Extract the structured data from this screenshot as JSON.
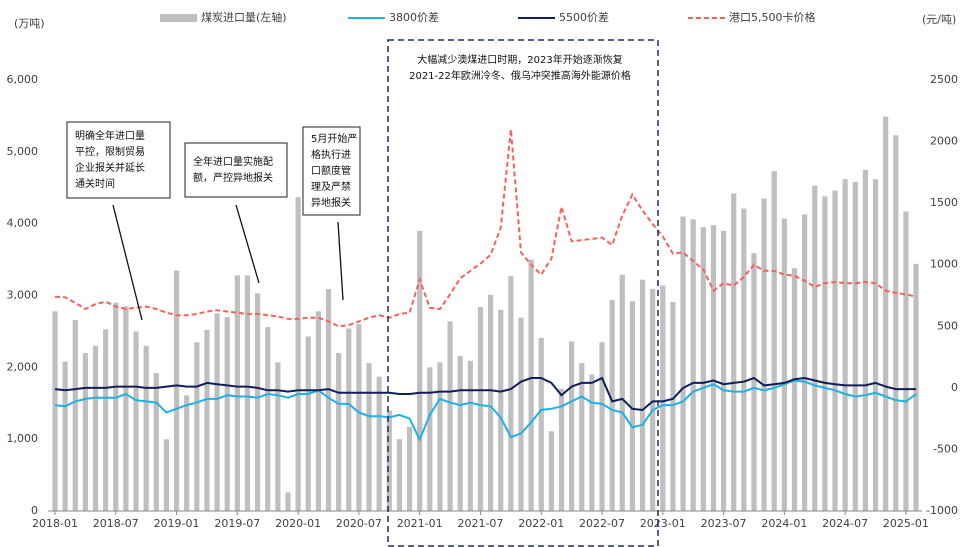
{
  "chart_data": {
    "type": "bar",
    "y_unit": "(万吨)",
    "y2_unit": "(元/吨)",
    "categories": [
      "2018-01",
      null,
      null,
      null,
      null,
      null,
      "2018-07",
      null,
      null,
      null,
      null,
      null,
      "2019-01",
      null,
      null,
      null,
      null,
      null,
      "2019-07",
      null,
      null,
      null,
      null,
      null,
      "2020-01",
      null,
      null,
      null,
      null,
      null,
      "2020-07",
      null,
      null,
      null,
      null,
      null,
      "2021-01",
      null,
      null,
      null,
      null,
      null,
      "2021-07",
      null,
      null,
      null,
      null,
      null,
      "2022-01",
      null,
      null,
      null,
      null,
      null,
      "2022-07",
      null,
      null,
      null,
      null,
      null,
      "2023-01",
      null,
      null,
      null,
      null,
      null,
      "2023-07",
      null,
      null,
      null,
      null,
      null,
      "2024-01",
      null,
      null,
      null,
      null,
      null,
      "2024-07",
      null,
      null,
      null,
      null,
      null,
      "2025-01",
      null
    ],
    "series": [
      {
        "name": "煤炭进口量(左轴)",
        "type": "bar",
        "color": "#bfbfbf",
        "values": [
          2780,
          2080,
          2660,
          2200,
          2300,
          2530,
          2900,
          2850,
          2500,
          2300,
          1920,
          1000,
          3350,
          1610,
          2350,
          2520,
          2750,
          2700,
          3280,
          3280,
          3030,
          2560,
          2070,
          260,
          4370,
          2430,
          2780,
          3090,
          2200,
          2540,
          2600,
          2060,
          1870,
          1400,
          1000,
          1170,
          3900,
          2000,
          2070,
          2640,
          2160,
          2090,
          2840,
          3010,
          2800,
          3270,
          2690,
          3500,
          2410,
          1110,
          1700,
          2360,
          2060,
          1900,
          2350,
          2940,
          3290,
          2920,
          3220,
          3090,
          3140,
          2910,
          4100,
          4060,
          3950,
          3980,
          3900,
          4420,
          4210,
          3590,
          4350,
          4730,
          4070,
          3380,
          4130,
          4530,
          4380,
          4460,
          4620,
          4580,
          4750,
          4620,
          5490,
          5230,
          4170,
          3440
        ]
      },
      {
        "name": "3800价差",
        "type": "line",
        "axis": "y2",
        "color": "#1fb0e6",
        "values": [
          -140,
          -150,
          -110,
          -90,
          -80,
          -80,
          -80,
          -50,
          -100,
          -110,
          -120,
          -200,
          -170,
          -140,
          -120,
          -90,
          -90,
          -60,
          -70,
          -70,
          -80,
          -50,
          -60,
          -80,
          -50,
          -50,
          -20,
          -80,
          -130,
          -130,
          -200,
          -230,
          -230,
          -240,
          -220,
          -250,
          -420,
          -220,
          -90,
          -120,
          -140,
          -120,
          -140,
          -150,
          -240,
          -400,
          -370,
          -280,
          -180,
          -170,
          -150,
          -110,
          -70,
          -120,
          -130,
          -180,
          -200,
          -320,
          -300,
          -180,
          -140,
          -140,
          -110,
          -30,
          0,
          30,
          -20,
          -30,
          -30,
          0,
          -20,
          0,
          30,
          60,
          50,
          20,
          0,
          -20,
          -50,
          -70,
          -60,
          -40,
          -70,
          -100,
          -110,
          -50
        ]
      },
      {
        "name": "5500价差",
        "type": "line",
        "axis": "y2",
        "color": "#0f1f5c",
        "values": [
          -10,
          -20,
          -10,
          0,
          0,
          0,
          10,
          10,
          10,
          0,
          0,
          10,
          20,
          10,
          10,
          40,
          30,
          20,
          10,
          10,
          0,
          -20,
          -20,
          -30,
          -20,
          -20,
          -20,
          -10,
          -40,
          -40,
          -40,
          -40,
          -40,
          -40,
          -50,
          -50,
          -40,
          -40,
          -30,
          -30,
          -20,
          -20,
          -20,
          -20,
          -30,
          -10,
          50,
          80,
          80,
          40,
          -60,
          10,
          40,
          40,
          80,
          -110,
          -90,
          -170,
          -180,
          -110,
          -110,
          -90,
          0,
          40,
          40,
          60,
          30,
          40,
          50,
          80,
          20,
          30,
          40,
          70,
          80,
          60,
          40,
          30,
          20,
          20,
          20,
          40,
          10,
          -10,
          -10,
          -10
        ]
      },
      {
        "name": "港口5,500卡价格",
        "type": "line",
        "axis": "y2",
        "style": "dashed",
        "color": "#f4625f",
        "values": [
          740,
          735,
          690,
          640,
          680,
          700,
          660,
          640,
          650,
          660,
          640,
          610,
          590,
          590,
          600,
          620,
          630,
          620,
          610,
          600,
          600,
          590,
          580,
          560,
          560,
          570,
          570,
          540,
          500,
          510,
          540,
          570,
          590,
          570,
          600,
          610,
          880,
          650,
          640,
          760,
          890,
          950,
          1010,
          1080,
          1300,
          2100,
          1100,
          1000,
          920,
          1050,
          1470,
          1190,
          1200,
          1210,
          1220,
          1160,
          1400,
          1570,
          1440,
          1330,
          1230,
          1090,
          1100,
          1030,
          960,
          790,
          850,
          830,
          900,
          1000,
          950,
          950,
          920,
          910,
          870,
          820,
          850,
          860,
          850,
          850,
          860,
          850,
          790,
          770,
          760,
          740
        ]
      }
    ],
    "ylim": [
      0,
      6000
    ],
    "yticks": [
      0,
      {
        "value": 1000,
        "label": "1,000"
      },
      {
        "value": 2000,
        "label": "2,000"
      },
      {
        "value": 3000,
        "label": "3,000"
      },
      {
        "value": 4000,
        "label": "4,000"
      },
      {
        "value": 5000,
        "label": "5,000"
      },
      {
        "value": 6000,
        "label": "6,000"
      }
    ],
    "y2lim": [
      -1000,
      2500
    ],
    "y2ticks": [
      -1000,
      -500,
      0,
      500,
      1000,
      1500,
      2000,
      2500
    ],
    "legend": "top",
    "annotations": [
      {
        "lines": [
          "明确全年进口量",
          "平控，限制贸易",
          "企业报关并延长",
          "通关时间"
        ]
      },
      {
        "lines": [
          "全年进口量实施配",
          "额，严控异地报关"
        ]
      },
      {
        "lines": [
          "5月开始严",
          "格执行进",
          "口额度管",
          "理及严禁",
          "异地报关"
        ]
      }
    ],
    "period_note": [
      "大幅减少澳煤进口时期，2023年开始逐渐恢复",
      "2021-22年欧洲冷冬、俄乌冲突推高海外能源价格"
    ]
  }
}
